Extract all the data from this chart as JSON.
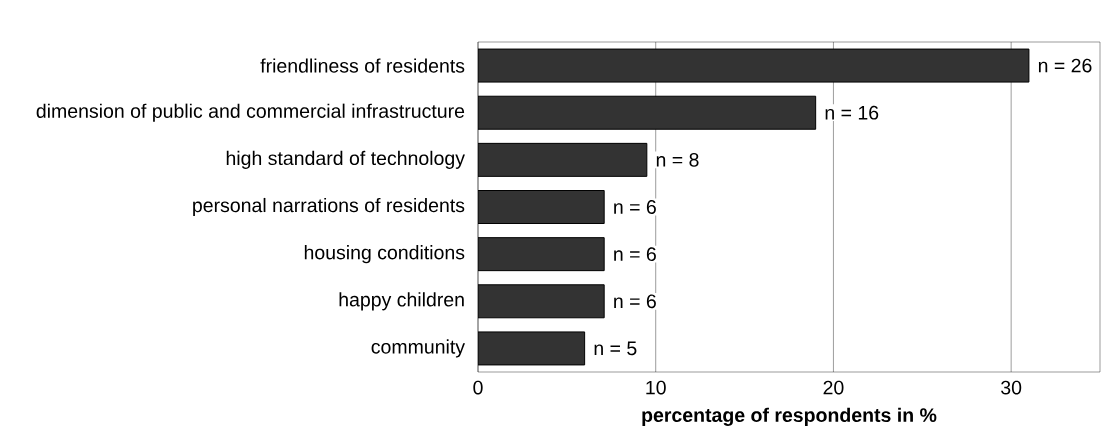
{
  "chart_data": {
    "type": "bar",
    "orientation": "horizontal",
    "categories": [
      "friendliness of residents",
      "dimension of public and commercial infrastructure",
      "high standard of technology",
      "personal narrations of residents",
      "housing conditions",
      "happy children",
      "community"
    ],
    "values": [
      31.0,
      19.0,
      9.5,
      7.1,
      7.1,
      7.1,
      6.0
    ],
    "color": "#333333",
    "xlabel": "percentage of respondents in %",
    "xlim": [
      0,
      35
    ],
    "xticks": [
      0,
      10,
      20,
      30
    ],
    "grid": "x",
    "annotations": [
      {
        "text": "n = 26",
        "x": 31.0,
        "y": "friendliness of residents"
      },
      {
        "text": "n = 16",
        "x": 19.0,
        "y": "dimension of public and commercial infrastructure"
      },
      {
        "text": "n = 8",
        "x": 9.5,
        "y": "high standard of technology"
      },
      {
        "text": "n = 6",
        "x": 7.1,
        "y": "personal narrations of residents"
      },
      {
        "text": "n = 6",
        "x": 7.1,
        "y": "housing conditions"
      },
      {
        "text": "n = 6",
        "x": 7.1,
        "y": "happy children"
      },
      {
        "text": "n = 5",
        "x": 6.0,
        "y": "community"
      }
    ]
  }
}
